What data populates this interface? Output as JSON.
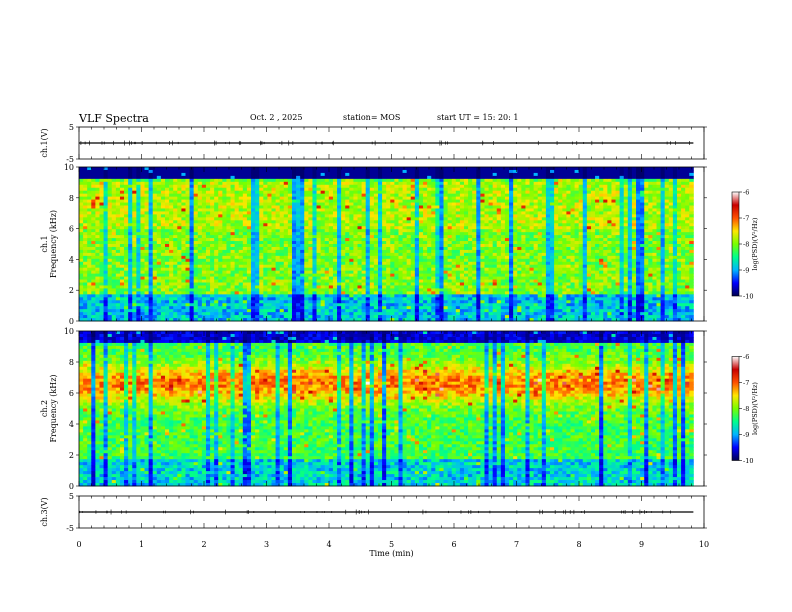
{
  "header": {
    "title": "VLF Spectra",
    "date": "Oct. 2  , 2025",
    "station": "station= MOS",
    "start": "start  UT  =    15: 20: 1"
  },
  "chart_data": [
    {
      "type": "line",
      "panel": "ch1-waveform",
      "ylabel": "ch.1(V)",
      "ylim": [
        -5,
        5
      ],
      "yticks": [
        "5",
        "-5"
      ],
      "xlim": [
        0,
        10
      ],
      "x": [
        0,
        9.83
      ],
      "y": [
        0,
        0
      ]
    },
    {
      "type": "heatmap",
      "panel": "ch1-spectrogram",
      "ylabel": "ch.1\nFrequency (kHz)",
      "ylim": [
        0,
        10
      ],
      "yticks": [
        "0",
        "2",
        "4",
        "6",
        "8",
        "10"
      ],
      "xlim": [
        0,
        10
      ],
      "data_end_min": 9.83,
      "colorbar": {
        "label": "log(PSD)(V²/Hz)",
        "range": [
          -10,
          -6
        ],
        "ticks": [
          "-6",
          "-7",
          "-8",
          "-9",
          "-10"
        ],
        "colors": [
          "#000050",
          "#0000ff",
          "#00b4ff",
          "#00ff8c",
          "#78ff00",
          "#ffe600",
          "#ff5000",
          "#c80000",
          "#ffffff"
        ]
      }
    },
    {
      "type": "heatmap",
      "panel": "ch2-spectrogram",
      "ylabel": "ch.2\nFrequency (kHz)",
      "ylim": [
        0,
        10
      ],
      "yticks": [
        "0",
        "2",
        "4",
        "6",
        "8",
        "10"
      ],
      "xlim": [
        0,
        10
      ],
      "data_end_min": 9.83,
      "colorbar": {
        "label": "log(PSD)(V²/Hz)",
        "range": [
          -10,
          -6
        ],
        "ticks": [
          "-6",
          "-7",
          "-8",
          "-9",
          "-10"
        ],
        "colors": [
          "#000050",
          "#0000ff",
          "#00b4ff",
          "#00ff8c",
          "#78ff00",
          "#ffe600",
          "#ff5000",
          "#c80000",
          "#ffffff"
        ]
      }
    },
    {
      "type": "line",
      "panel": "ch3-waveform",
      "ylabel": "ch.3(V)",
      "ylim": [
        -5,
        5
      ],
      "yticks": [
        "5",
        "-5"
      ],
      "xlim": [
        0,
        10
      ],
      "x": [
        0,
        9.83
      ],
      "y": [
        0,
        0
      ],
      "xlabel": "Time  (min)",
      "xticks": [
        "0",
        "1",
        "2",
        "3",
        "4",
        "5",
        "6",
        "7",
        "8",
        "9",
        "10"
      ]
    }
  ]
}
